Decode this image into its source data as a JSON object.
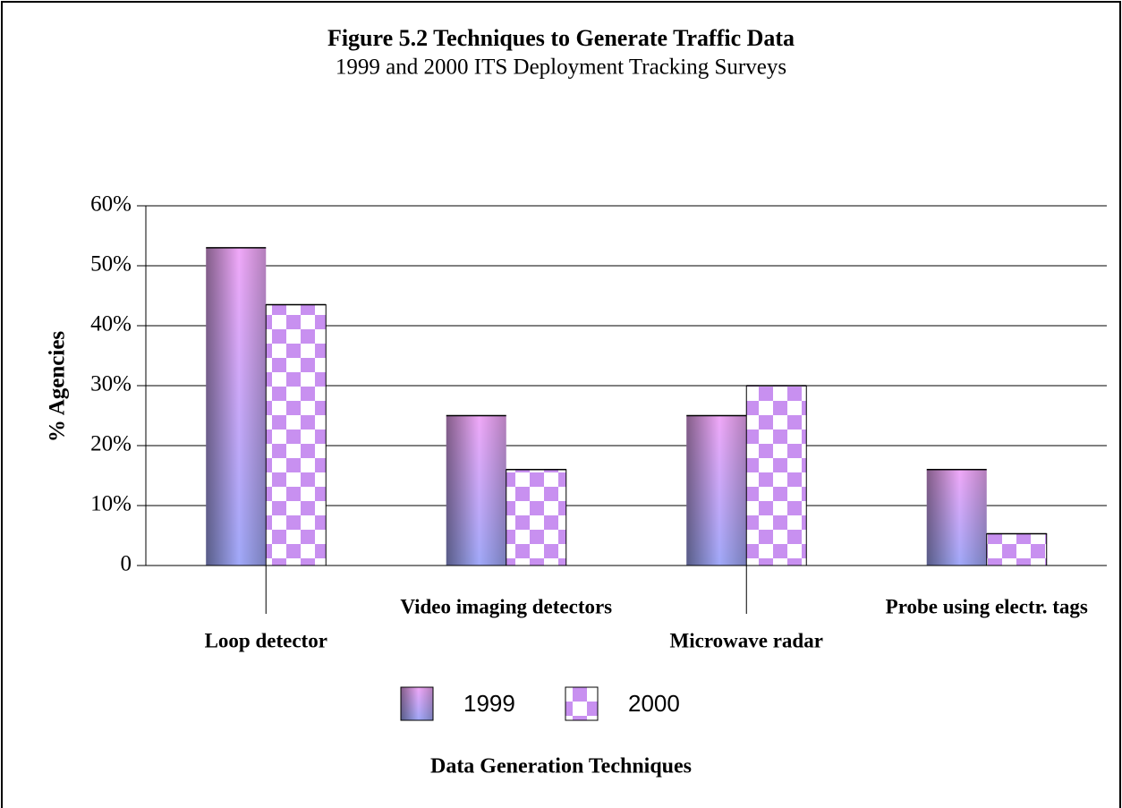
{
  "chart_data": {
    "type": "bar",
    "title": "Figure 5.2 Techniques to Generate Traffic Data",
    "subtitle": "1999 and 2000 ITS Deployment Tracking Surveys",
    "x_label": "Data Generation Techniques",
    "y_label": "% Agencies",
    "categories": [
      "Loop detector",
      "Video imaging detectors",
      "Microwave radar",
      "Probe using electr. tags"
    ],
    "series": [
      {
        "name": "1999",
        "color": "#f0a8f8",
        "values": [
          53,
          25,
          25,
          16
        ]
      },
      {
        "name": "2000",
        "color": "#c890f0",
        "values": [
          43.5,
          16,
          30,
          5.3
        ]
      }
    ],
    "ylim": [
      0,
      60
    ],
    "yticks": [
      0,
      {
        "value": 10,
        "label": "10%"
      },
      {
        "value": 20,
        "label": "20%"
      },
      {
        "value": 30,
        "label": "30%"
      },
      {
        "value": 40,
        "label": "40%"
      },
      {
        "value": 50,
        "label": "50%"
      },
      {
        "value": 60,
        "label": "60%"
      }
    ],
    "grid": true
  }
}
